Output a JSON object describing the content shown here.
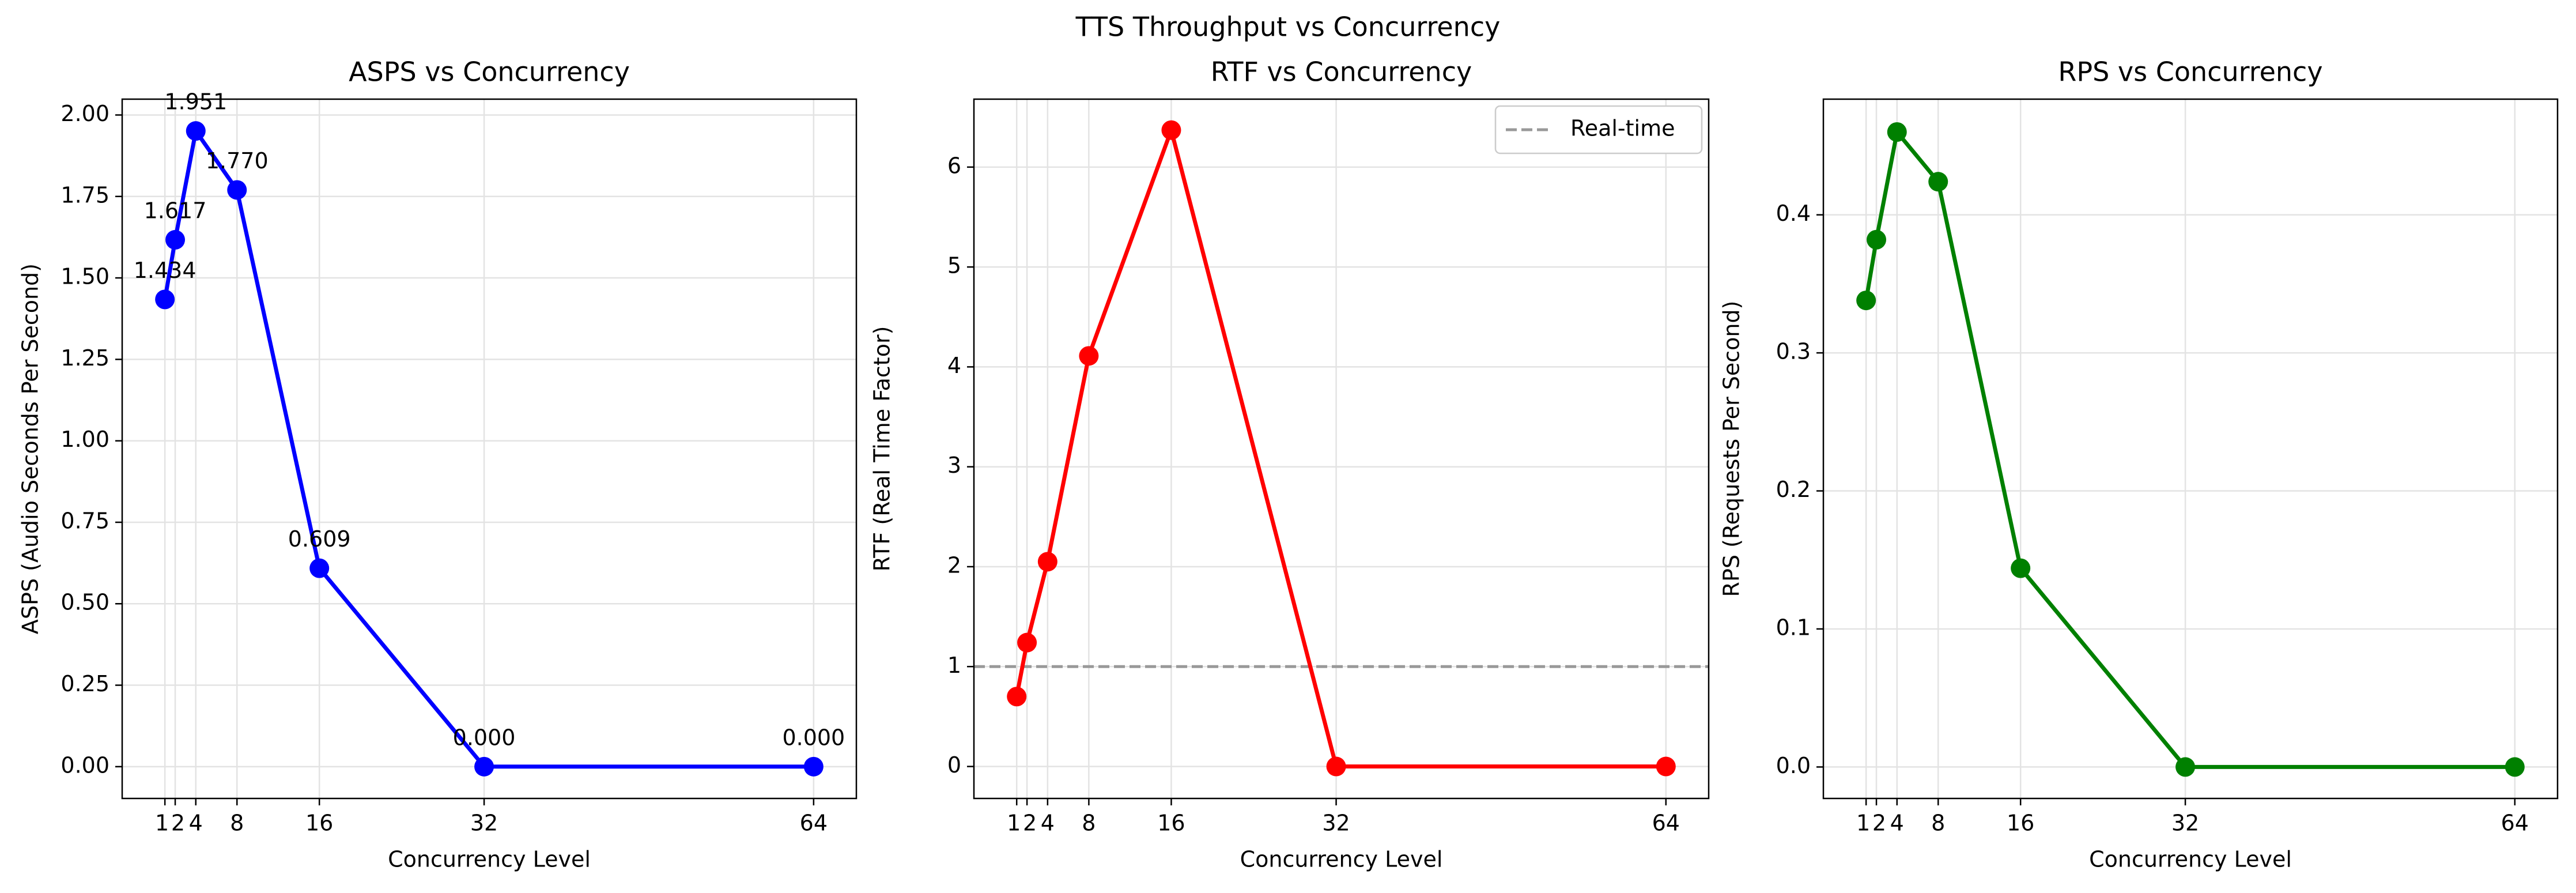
{
  "figure": {
    "suptitle": "TTS Throughput vs Concurrency"
  },
  "chart_data": [
    {
      "type": "line",
      "title": "ASPS vs Concurrency",
      "xlabel": "Concurrency Level",
      "ylabel": "ASPS (Audio Seconds Per Second)",
      "x": [
        1,
        2,
        4,
        8,
        16,
        32,
        64
      ],
      "xticks": [
        1,
        2,
        4,
        8,
        16,
        32,
        64
      ],
      "xlim": [
        -3.15,
        68.15
      ],
      "ylim": [
        -0.0976,
        2.0486
      ],
      "yticks": [
        0.0,
        0.25,
        0.5,
        0.75,
        1.0,
        1.25,
        1.5,
        1.75,
        2.0
      ],
      "ytick_decimals": 2,
      "series": [
        {
          "values": [
            1.434,
            1.617,
            1.951,
            1.77,
            0.609,
            0.0,
            0.0
          ],
          "color": "#0000ff"
        }
      ],
      "data_labels": [
        {
          "x": 1,
          "y": 1.434,
          "text": "1.434"
        },
        {
          "x": 2,
          "y": 1.617,
          "text": "1.617"
        },
        {
          "x": 4,
          "y": 1.951,
          "text": "1.951"
        },
        {
          "x": 8,
          "y": 1.77,
          "text": "1.770"
        },
        {
          "x": 16,
          "y": 0.609,
          "text": "0.609"
        },
        {
          "x": 32,
          "y": 0.0,
          "text": "0.000"
        },
        {
          "x": 64,
          "y": 0.0,
          "text": "0.000"
        }
      ],
      "grid": true
    },
    {
      "type": "line",
      "title": "RTF vs Concurrency",
      "xlabel": "Concurrency Level",
      "ylabel": "RTF (Real Time Factor)",
      "x": [
        1,
        2,
        4,
        8,
        16,
        32,
        64
      ],
      "xticks": [
        1,
        2,
        4,
        8,
        16,
        32,
        64
      ],
      "xlim": [
        -3.15,
        68.15
      ],
      "ylim": [
        -0.32,
        6.68
      ],
      "yticks": [
        0,
        1,
        2,
        3,
        4,
        5,
        6
      ],
      "ytick_decimals": 0,
      "series": [
        {
          "values": [
            0.7,
            1.24,
            2.05,
            4.11,
            6.37,
            0.0,
            0.0
          ],
          "color": "#ff0000"
        }
      ],
      "reference_line": {
        "y": 1,
        "name": "Real-time",
        "color": "#999999"
      },
      "legend": {
        "position": "upper right",
        "entries": [
          "Real-time"
        ]
      },
      "grid": true
    },
    {
      "type": "line",
      "title": "RPS vs Concurrency",
      "xlabel": "Concurrency Level",
      "ylabel": "RPS (Requests Per Second)",
      "x": [
        1,
        2,
        4,
        8,
        16,
        32,
        64
      ],
      "xticks": [
        1,
        2,
        4,
        8,
        16,
        32,
        64
      ],
      "xlim": [
        -3.15,
        68.15
      ],
      "ylim": [
        -0.0228,
        0.4838
      ],
      "yticks": [
        0.0,
        0.1,
        0.2,
        0.3,
        0.4
      ],
      "ytick_decimals": 1,
      "series": [
        {
          "values": [
            0.338,
            0.382,
            0.46,
            0.424,
            0.144,
            0.0,
            0.0
          ],
          "color": "#008000"
        }
      ],
      "grid": true
    }
  ]
}
